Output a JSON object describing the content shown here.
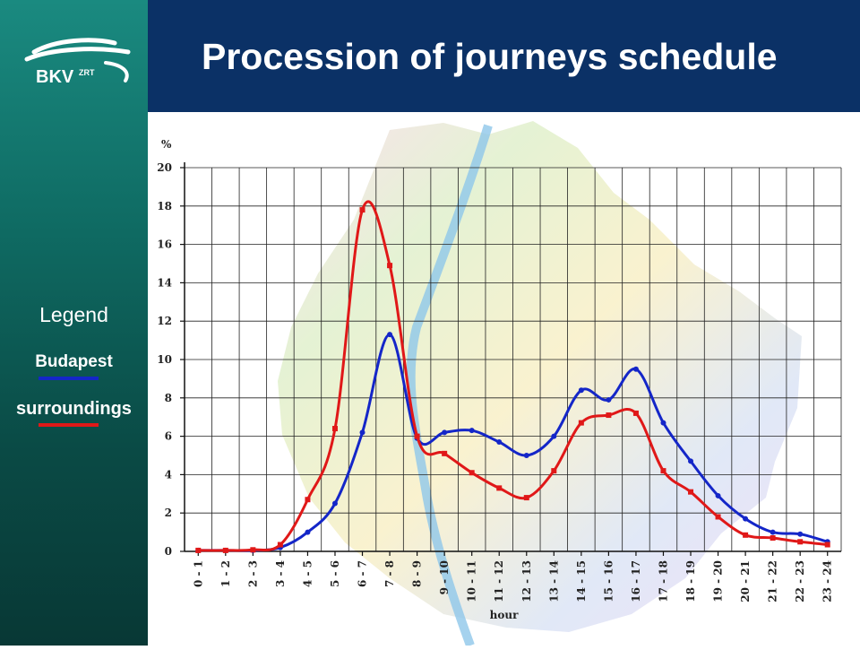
{
  "header": {
    "title": "Procession of journeys schedule"
  },
  "logo": {
    "text": "BKV",
    "suffix": "ZRT"
  },
  "legend": {
    "title": "Legend",
    "items": [
      {
        "label": "Budapest",
        "color": "#1426c8"
      },
      {
        "label": "surroundings",
        "color": "#e01818"
      }
    ]
  },
  "chart_data": {
    "type": "line",
    "ylabel": "%",
    "xlabel": "hour",
    "ylim": [
      0,
      20
    ],
    "yticks": [
      0,
      2,
      4,
      6,
      8,
      10,
      12,
      14,
      16,
      18,
      20
    ],
    "grid": true,
    "categories": [
      "0 - 1",
      "1 - 2",
      "2 - 3",
      "3 - 4",
      "4 - 5",
      "5 - 6",
      "6 - 7",
      "7 - 8",
      "8 - 9",
      "9 - 10",
      "10 - 11",
      "11 - 12",
      "12 - 13",
      "13 - 14",
      "14 - 15",
      "15 - 16",
      "16 - 17",
      "17 - 18",
      "18 - 19",
      "19 - 20",
      "20 - 21",
      "21 - 22",
      "22 - 23",
      "23 - 24"
    ],
    "series": [
      {
        "name": "Budapest",
        "color": "#1426c8",
        "values": [
          0.05,
          0.05,
          0.05,
          0.2,
          1.0,
          2.5,
          6.2,
          11.3,
          5.9,
          6.2,
          6.3,
          5.7,
          5.0,
          6.0,
          8.4,
          7.9,
          9.5,
          6.7,
          4.7,
          2.9,
          1.7,
          1.0,
          0.9,
          0.5
        ]
      },
      {
        "name": "surroundings",
        "color": "#e01818",
        "values": [
          0.05,
          0.05,
          0.08,
          0.35,
          2.7,
          6.4,
          17.8,
          14.9,
          6.0,
          5.1,
          4.1,
          3.3,
          2.8,
          4.2,
          6.7,
          7.1,
          7.2,
          4.2,
          3.1,
          1.8,
          0.85,
          0.7,
          0.5,
          0.35
        ]
      }
    ]
  }
}
